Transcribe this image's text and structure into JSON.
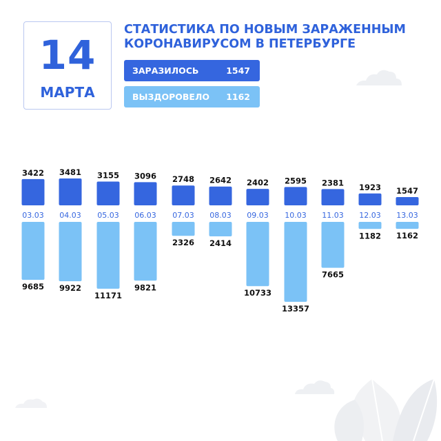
{
  "header": {
    "day": "14",
    "month": "МАРТА",
    "title_line1": "СТАТИСТИКА ПО НОВЫМ ЗАРАЖЕННЫМ",
    "title_line2": "КОРОНАВИРУСОМ В ПЕТЕРБУРГЕ"
  },
  "summary": {
    "infected_label": "ЗАРАЗИЛОСЬ",
    "infected_value": "1547",
    "recovered_label": "ВЫЗДОРОВЕЛО",
    "recovered_value": "1162"
  },
  "colors": {
    "infected": "#3566df",
    "recovered": "#7bc2f6",
    "title": "#2f62db",
    "decor": "#eef0f3"
  },
  "chart_data": {
    "type": "bar",
    "categories": [
      "03.03",
      "04.03",
      "05.03",
      "06.03",
      "07.03",
      "08.03",
      "09.03",
      "10.03",
      "11.03",
      "12.03",
      "13.03"
    ],
    "series": [
      {
        "name": "ЗАРАЗИЛОСЬ",
        "values": [
          3422,
          3481,
          3155,
          3096,
          2748,
          2642,
          2402,
          2595,
          2381,
          1923,
          1547
        ]
      },
      {
        "name": "ВЫЗДОРОВЕЛО",
        "values": [
          9685,
          9922,
          11171,
          9821,
          2326,
          2414,
          10733,
          13357,
          7665,
          1182,
          1162
        ]
      }
    ]
  }
}
